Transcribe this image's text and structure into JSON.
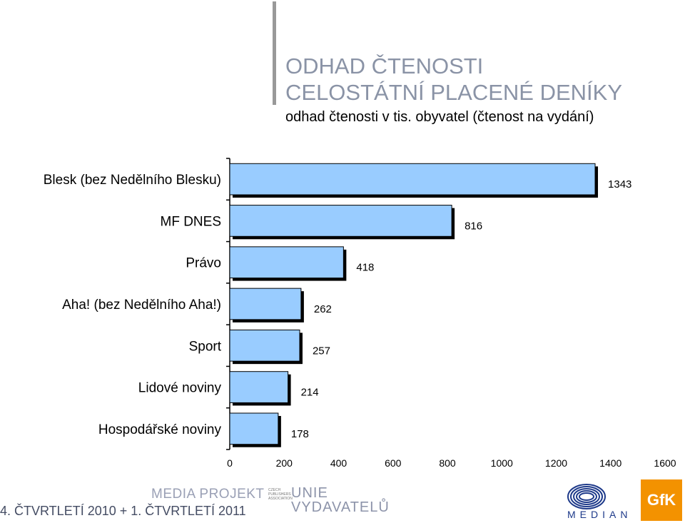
{
  "header": {
    "title_line1": "ODHAD ČTENOSTI",
    "title_line2": "CELOSTÁTNÍ PLACENÉ DENÍKY",
    "subtitle": "odhad čtenosti v tis. obyvatel (čtenost na vydání)"
  },
  "chart_data": {
    "type": "bar",
    "orientation": "horizontal",
    "categories": [
      "Blesk (bez Nedělního Blesku)",
      "MF DNES",
      "Právo",
      "Aha! (bez Nedělního Aha!)",
      "Sport",
      "Lidové noviny",
      "Hospodářské noviny"
    ],
    "values": [
      1343,
      816,
      418,
      262,
      257,
      214,
      178
    ],
    "data_labels": [
      "1343",
      "816",
      "418",
      "262",
      "257",
      "214",
      "178"
    ],
    "xlim": [
      0,
      1600
    ],
    "xticks": [
      "0",
      "200",
      "400",
      "600",
      "800",
      "1000",
      "1200",
      "1400",
      "1600"
    ],
    "title": "",
    "xlabel": "",
    "ylabel": "",
    "bar_color": "#99ccff",
    "grid": false
  },
  "footer": {
    "period": "4. ČTVRTLETÍ 2010 + 1. ČTVRTLETÍ 2011",
    "media_projekt": "MEDIA PROJEKT",
    "cpa_lines": [
      "CZECH",
      "PUBLISHERS",
      "ASSOCIATION"
    ],
    "unie_line1": "UNIE",
    "unie_line2": "VYDAVATELŮ",
    "median": "MEDIAN",
    "gfk": "GfK"
  },
  "colors": {
    "title": "#8a93a6",
    "accent_bar": "#999999",
    "gfk": "#f39200",
    "median_blue": "#1e3a8a"
  }
}
